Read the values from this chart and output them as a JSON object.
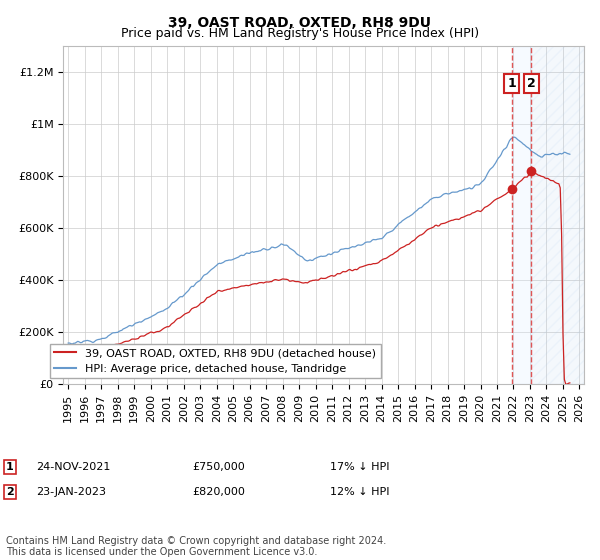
{
  "title": "39, OAST ROAD, OXTED, RH8 9DU",
  "subtitle": "Price paid vs. HM Land Registry's House Price Index (HPI)",
  "ylim": [
    0,
    1300000
  ],
  "yticks": [
    0,
    200000,
    400000,
    600000,
    800000,
    1000000,
    1200000
  ],
  "ytick_labels": [
    "£0",
    "£200K",
    "£400K",
    "£600K",
    "£800K",
    "£1M",
    "£1.2M"
  ],
  "xlim_start": 1994.7,
  "xlim_end": 2026.3,
  "hpi_color": "#6699cc",
  "price_color": "#cc2222",
  "vline_color": "#dd4444",
  "shade_color": "#ddeeff",
  "background_color": "#ffffff",
  "grid_color": "#cccccc",
  "legend_label_price": "39, OAST ROAD, OXTED, RH8 9DU (detached house)",
  "legend_label_hpi": "HPI: Average price, detached house, Tandridge",
  "annotation1_label": "1",
  "annotation1_date": "24-NOV-2021",
  "annotation1_price": "£750,000",
  "annotation1_hpi": "17% ↓ HPI",
  "annotation1_year": 2021.9,
  "annotation1_value": 750000,
  "annotation2_label": "2",
  "annotation2_date": "23-JAN-2023",
  "annotation2_price": "£820,000",
  "annotation2_hpi": "12% ↓ HPI",
  "annotation2_year": 2023.07,
  "annotation2_value": 820000,
  "footer": "Contains HM Land Registry data © Crown copyright and database right 2024.\nThis data is licensed under the Open Government Licence v3.0.",
  "title_fontsize": 10,
  "subtitle_fontsize": 9,
  "tick_fontsize": 8,
  "legend_fontsize": 8,
  "footer_fontsize": 7
}
